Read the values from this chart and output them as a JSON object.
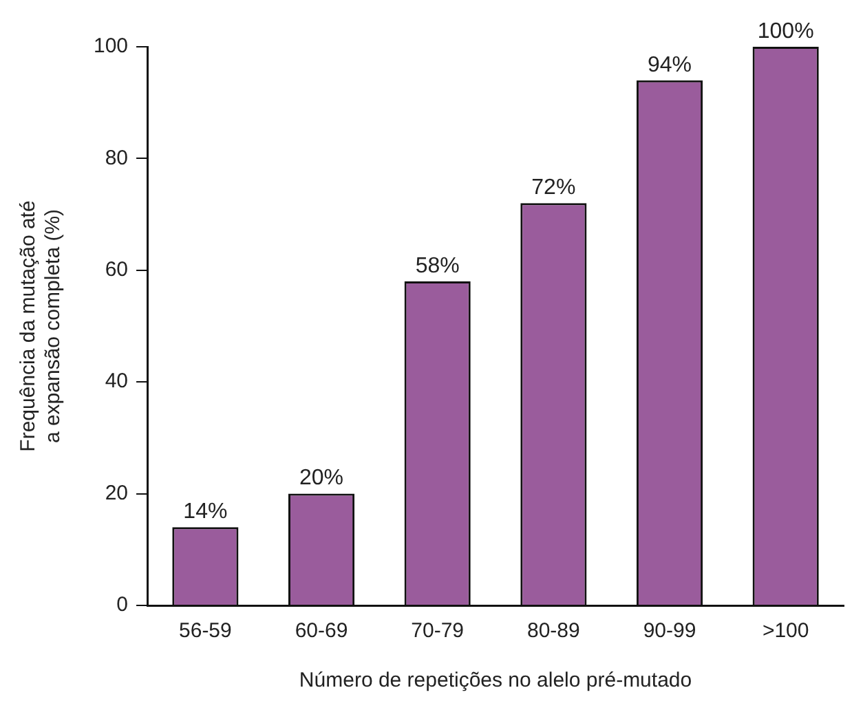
{
  "chart_data": {
    "type": "bar",
    "xlabel": "Número de repetições no alelo pré-mutado",
    "ylabel": "Frequência da mutação até\na expansão completa (%)",
    "categories": [
      "56-59",
      "60-69",
      "70-79",
      "80-89",
      "90-99",
      ">100"
    ],
    "values": [
      14,
      20,
      58,
      72,
      94,
      100
    ],
    "value_labels": [
      "14%",
      "20%",
      "58%",
      "72%",
      "94%",
      "100%"
    ],
    "color": "#9a5c9c",
    "ylim": [
      0,
      100
    ],
    "yticks": [
      0,
      20,
      40,
      60,
      80,
      100
    ],
    "grid": false,
    "legend": false
  }
}
